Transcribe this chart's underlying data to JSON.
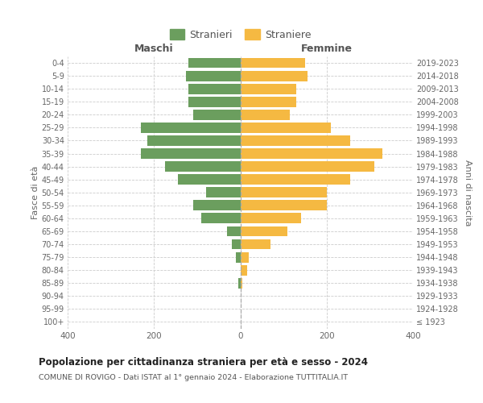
{
  "age_groups": [
    "100+",
    "95-99",
    "90-94",
    "85-89",
    "80-84",
    "75-79",
    "70-74",
    "65-69",
    "60-64",
    "55-59",
    "50-54",
    "45-49",
    "40-44",
    "35-39",
    "30-34",
    "25-29",
    "20-24",
    "15-19",
    "10-14",
    "5-9",
    "0-4"
  ],
  "birth_years": [
    "≤ 1923",
    "1924-1928",
    "1929-1933",
    "1934-1938",
    "1939-1943",
    "1944-1948",
    "1949-1953",
    "1954-1958",
    "1959-1963",
    "1964-1968",
    "1969-1973",
    "1974-1978",
    "1979-1983",
    "1984-1988",
    "1989-1993",
    "1994-1998",
    "1999-2003",
    "2004-2008",
    "2009-2013",
    "2014-2018",
    "2019-2023"
  ],
  "males": [
    0,
    0,
    0,
    5,
    0,
    10,
    20,
    30,
    90,
    110,
    80,
    145,
    175,
    230,
    215,
    230,
    110,
    120,
    120,
    125,
    120
  ],
  "females": [
    0,
    0,
    0,
    5,
    15,
    20,
    70,
    110,
    140,
    200,
    200,
    255,
    310,
    330,
    255,
    210,
    115,
    130,
    130,
    155,
    150
  ],
  "male_color": "#6b9e5e",
  "female_color": "#f5b942",
  "background_color": "#ffffff",
  "grid_color": "#cccccc",
  "title": "Popolazione per cittadinanza straniera per età e sesso - 2024",
  "subtitle": "COMUNE DI ROVIGO - Dati ISTAT al 1° gennaio 2024 - Elaborazione TUTTITALIA.IT",
  "xlabel_left": "Maschi",
  "xlabel_right": "Femmine",
  "ylabel_left": "Fasce di età",
  "ylabel_right": "Anni di nascita",
  "legend_male": "Stranieri",
  "legend_female": "Straniere",
  "xlim": 400,
  "bar_height": 0.8
}
